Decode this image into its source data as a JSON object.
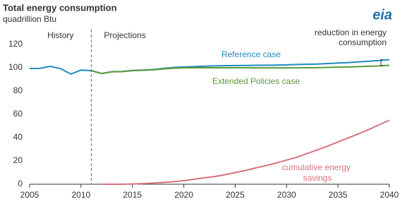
{
  "chart_data": {
    "type": "line",
    "title": "Total energy consumption",
    "subtitle": "quadrillion Btu",
    "logo": "eia",
    "regions": [
      "History",
      "Projections"
    ],
    "history_end": 2011,
    "x": [
      2005,
      2006,
      2007,
      2008,
      2009,
      2010,
      2011,
      2012,
      2013,
      2014,
      2015,
      2016,
      2017,
      2018,
      2019,
      2020,
      2021,
      2022,
      2023,
      2024,
      2025,
      2026,
      2027,
      2028,
      2029,
      2030,
      2031,
      2032,
      2033,
      2034,
      2035,
      2036,
      2037,
      2038,
      2039,
      2040
    ],
    "series": [
      {
        "name": "Reference case",
        "color": "#1f8bbf",
        "values": [
          99.4,
          99.5,
          101.3,
          99.3,
          94.6,
          98,
          97.5,
          95.1,
          96.6,
          96.8,
          97.7,
          98,
          98.5,
          99.5,
          100.2,
          100.7,
          101,
          101.4,
          101.6,
          101.8,
          101.9,
          102,
          102.1,
          102.2,
          102.3,
          102.5,
          102.8,
          103,
          103.2,
          103.6,
          104,
          104.5,
          105,
          105.6,
          106.2,
          107
        ]
      },
      {
        "name": "Extended Policies case",
        "color": "#5c9a3a",
        "values": [
          null,
          null,
          null,
          null,
          null,
          null,
          97.5,
          95.1,
          96.5,
          96.7,
          97.5,
          97.8,
          98.2,
          99,
          99.6,
          99.9,
          100,
          100.1,
          100,
          100,
          100,
          100,
          99.9,
          99.9,
          99.9,
          99.9,
          99.9,
          100,
          100.1,
          100.3,
          100.5,
          100.7,
          101,
          101.3,
          101.6,
          102.1
        ]
      },
      {
        "name": "cumulative energy savings",
        "color": "#d8727f",
        "values": [
          null,
          null,
          null,
          null,
          null,
          null,
          null,
          0,
          0,
          0,
          0.2,
          0.5,
          1,
          1.5,
          2.2,
          3,
          4.3,
          5.5,
          6.6,
          8.2,
          10,
          11.8,
          14,
          16,
          18.2,
          20.7,
          23.2,
          26.3,
          29.5,
          32.8,
          36.3,
          39.7,
          43.3,
          47,
          51,
          55
        ]
      }
    ],
    "annotation": [
      "reduction in energy",
      "consumption"
    ],
    "xlim": [
      2005,
      2040
    ],
    "xticks": [
      2005,
      2010,
      2015,
      2020,
      2025,
      2030,
      2035,
      2040
    ],
    "ylim": [
      0,
      120
    ],
    "yticks": [
      0,
      20,
      40,
      60,
      80,
      100,
      120
    ],
    "grid": false
  }
}
